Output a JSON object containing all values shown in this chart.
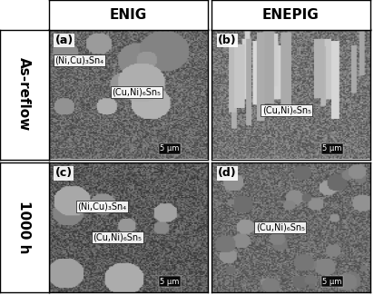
{
  "figure_width": 4.12,
  "figure_height": 3.25,
  "dpi": 100,
  "col_headers": [
    "ENIG",
    "ENEPIG"
  ],
  "row_headers": [
    "As-reflow",
    "1000 h"
  ],
  "panel_labels": [
    "(a)",
    "(b)",
    "(c)",
    "(d)"
  ],
  "panel_annotations": [
    [
      "(Cu,Ni)₆Sn₅",
      "(Ni,Cu)₃Sn₄"
    ],
    [
      "(Cu,Ni)₆Sn₅"
    ],
    [
      "(Cu,Ni)₆Sn₅",
      "(Ni,Cu)₃Sn₄"
    ],
    [
      "(Cu,Ni)₆Sn₅"
    ]
  ],
  "scale_bar_text": "5 μm",
  "border_color": "#000000",
  "text_color": "#000000",
  "font_size_header": 11,
  "font_size_label": 9,
  "font_size_annotation": 7,
  "font_size_scalebar": 6,
  "row_header_rotation": 270
}
